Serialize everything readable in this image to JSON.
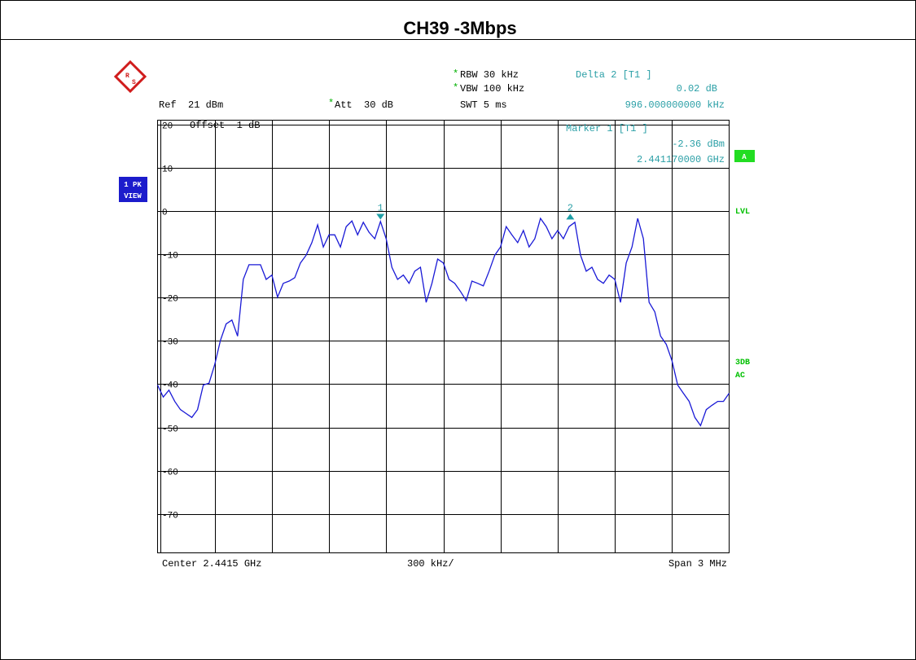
{
  "chart_data": {
    "type": "line",
    "title": "CH39 -3Mbps",
    "logo_text": [
      "R",
      "S"
    ],
    "annotations": {
      "ref": "Ref  21 dBm",
      "att_star": "*",
      "att": "Att  30 dB",
      "rbw_star": "*",
      "rbw": "RBW 30 kHz",
      "vbw_star": "*",
      "vbw": "VBW 100 kHz",
      "swt": "SWT 5 ms",
      "delta": "Delta 2 [T1 ]",
      "delta_level": "0.02 dB",
      "delta_freq": "996.000000000 kHz",
      "marker": "Marker 1 [T1 ]",
      "marker_level": "-2.36 dBm",
      "marker_freq": "2.441170000 GHz",
      "offset": "Offset  1 dB",
      "trace_1": "1 PK",
      "trace_2": "VIEW",
      "a": "A",
      "lvl": "LVL",
      "db3": "3DB",
      "ac": "AC",
      "center": "Center 2.4415 GHz",
      "div": "300 kHz/",
      "span": "Span 3 MHz"
    },
    "xlim": [
      2.44,
      2.443
    ],
    "ylim": [
      -79,
      21
    ],
    "yticks": [
      20,
      10,
      0,
      -10,
      -20,
      -30,
      -40,
      -50,
      -60,
      -70
    ],
    "grid": true,
    "color": "#1a1ad6",
    "x": [
      2.44,
      2.44003,
      2.44006,
      2.44009,
      2.44012,
      2.44015,
      2.44018,
      2.44021,
      2.44024,
      2.44027,
      2.4403,
      2.44033,
      2.44036,
      2.44039,
      2.44042,
      2.44045,
      2.44048,
      2.44051,
      2.44054,
      2.44057,
      2.4406,
      2.44063,
      2.44066,
      2.44069,
      2.44072,
      2.44075,
      2.44078,
      2.44081,
      2.44084,
      2.44087,
      2.4409,
      2.44093,
      2.44096,
      2.44099,
      2.44102,
      2.44105,
      2.44108,
      2.44111,
      2.44114,
      2.44117,
      2.4412,
      2.44123,
      2.44126,
      2.44129,
      2.44132,
      2.44135,
      2.44138,
      2.44141,
      2.44144,
      2.44147,
      2.4415,
      2.44153,
      2.44156,
      2.44159,
      2.44162,
      2.44165,
      2.44168,
      2.44171,
      2.44174,
      2.44177,
      2.4418,
      2.44183,
      2.44186,
      2.44189,
      2.44192,
      2.44195,
      2.44198,
      2.44201,
      2.44204,
      2.44207,
      2.4421,
      2.44213,
      2.44216,
      2.44219,
      2.44222,
      2.44225,
      2.44228,
      2.44231,
      2.44234,
      2.44237,
      2.4424,
      2.44243,
      2.44246,
      2.44249,
      2.44252,
      2.44255,
      2.44258,
      2.44261,
      2.44264,
      2.44267,
      2.4427,
      2.44273,
      2.44276,
      2.44279,
      2.44282,
      2.44285,
      2.44288,
      2.44291,
      2.44294,
      2.44297,
      2.443
    ],
    "values": [
      -40.2,
      -43.0,
      -41.4,
      -44.0,
      -45.9,
      -46.8,
      -47.7,
      -45.9,
      -40.2,
      -39.8,
      -35.5,
      -29.9,
      -26.1,
      -25.2,
      -28.9,
      -15.8,
      -12.4,
      -12.4,
      -12.4,
      -15.8,
      -14.8,
      -19.9,
      -16.7,
      -16.2,
      -15.4,
      -12.0,
      -10.2,
      -7.3,
      -3.2,
      -8.3,
      -5.5,
      -5.5,
      -8.3,
      -3.6,
      -2.3,
      -5.5,
      -2.6,
      -4.9,
      -6.4,
      -2.4,
      -6.4,
      -13.0,
      -15.8,
      -14.8,
      -16.7,
      -13.9,
      -13.0,
      -21.1,
      -16.7,
      -11.1,
      -12.0,
      -15.8,
      -16.7,
      -18.6,
      -20.7,
      -16.2,
      -16.7,
      -17.3,
      -13.9,
      -10.2,
      -8.3,
      -3.6,
      -5.5,
      -7.3,
      -4.5,
      -8.3,
      -6.4,
      -1.7,
      -3.6,
      -6.4,
      -4.5,
      -6.4,
      -3.6,
      -2.6,
      -10.2,
      -13.9,
      -13.0,
      -15.8,
      -16.7,
      -14.8,
      -15.8,
      -21.1,
      -12.0,
      -8.3,
      -1.7,
      -6.4,
      -21.1,
      -23.3,
      -28.9,
      -30.8,
      -34.6,
      -40.2,
      -42.1,
      -44.0,
      -47.7,
      -49.6,
      -45.9,
      -44.9,
      -44.0,
      -44.0,
      -42.1
    ],
    "markers": [
      {
        "label": "1",
        "x": 2.44117,
        "value": -2.36
      },
      {
        "label": "2",
        "x": 2.442166,
        "value": -2.34
      }
    ]
  }
}
